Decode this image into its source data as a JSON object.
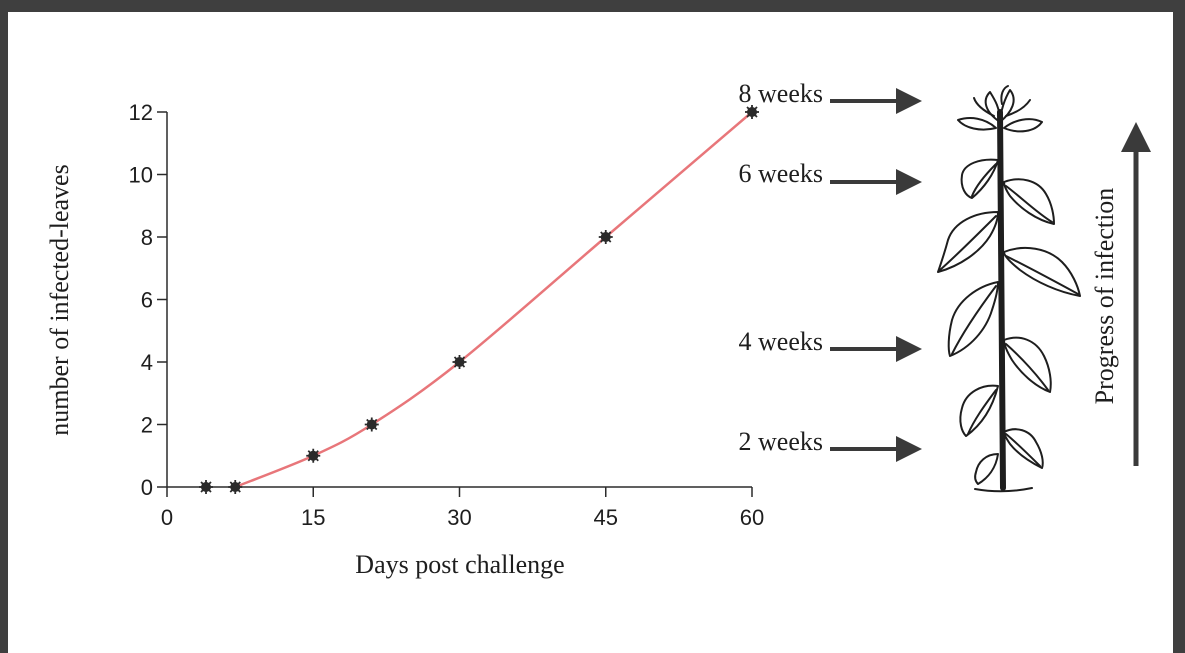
{
  "chart_data": {
    "type": "line",
    "xlabel": "Days post challenge",
    "ylabel": "number of infected-leaves",
    "xlim": [
      0,
      60
    ],
    "ylim": [
      0,
      12
    ],
    "xticks": [
      0,
      15,
      30,
      45,
      60
    ],
    "yticks": [
      0,
      2,
      4,
      6,
      8,
      10,
      12
    ],
    "grid": false,
    "series": [
      {
        "x": [
          4,
          7,
          15,
          21,
          30,
          45,
          60
        ],
        "y": [
          0,
          0,
          1,
          2,
          4,
          8,
          12
        ],
        "color": "#e8767a",
        "marker_color": "#2b2b2b"
      }
    ]
  },
  "annotations": {
    "week_labels": [
      "8 weeks",
      "6 weeks",
      "4 weeks",
      "2 weeks"
    ],
    "progress_label": "Progress of infection"
  },
  "colors": {
    "frame": "#3f3f3f",
    "arrow": "#3a3a3a",
    "plant": "#1e1e1e"
  }
}
